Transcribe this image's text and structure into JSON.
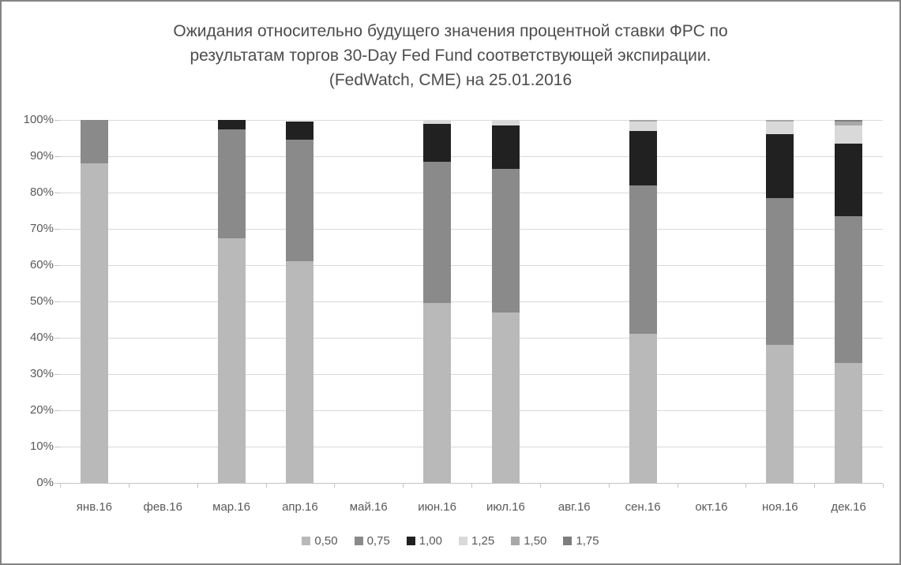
{
  "chart_data": {
    "type": "bar",
    "stacked": true,
    "percent_stacked": true,
    "title": "Ожидания относительно будущего значения процентной ставки ФРС по результатам торгов 30-Day Fed Fund соответствующей экспирации. (FedWatch, CME) на 25.01.2016",
    "title_lines": [
      "Ожидания относительно будущего значения процентной ставки ФРС по",
      "результатам торгов 30-Day Fed Fund соответствующей экспирации.",
      "(FedWatch, CME) на 25.01.2016"
    ],
    "categories": [
      "янв.16",
      "фев.16",
      "мар.16",
      "апр.16",
      "май.16",
      "июн.16",
      "июл.16",
      "авг.16",
      "сен.16",
      "окт.16",
      "ноя.16",
      "дек.16"
    ],
    "series": [
      {
        "name": "0,50",
        "color": "#b9b9b9",
        "values": [
          88,
          0,
          67.5,
          61,
          0,
          49.5,
          47,
          0,
          41,
          0,
          38,
          33
        ]
      },
      {
        "name": "0,75",
        "color": "#8a8a8a",
        "values": [
          12,
          0,
          30,
          33.5,
          0,
          39,
          39.5,
          0,
          41,
          0,
          40.5,
          40.5
        ]
      },
      {
        "name": "1,00",
        "color": "#212121",
        "values": [
          0,
          0,
          2.5,
          5,
          0,
          10.5,
          12,
          0,
          15,
          0,
          17.5,
          20
        ]
      },
      {
        "name": "1,25",
        "color": "#d9d9d9",
        "values": [
          0,
          0,
          0,
          0,
          0,
          1,
          1.5,
          0,
          2.5,
          0,
          3.5,
          5
        ]
      },
      {
        "name": "1,50",
        "color": "#a8a8a8",
        "values": [
          0,
          0,
          0,
          0,
          0,
          0,
          0,
          0,
          0.5,
          0,
          0.5,
          1
        ]
      },
      {
        "name": "1,75",
        "color": "#7d7d7d",
        "values": [
          0,
          0,
          0,
          0,
          0,
          0,
          0,
          0,
          0,
          0,
          0,
          0.5
        ]
      }
    ],
    "y_axis": {
      "min": 0,
      "max": 100,
      "tick_step": 10,
      "tick_labels": [
        "0%",
        "10%",
        "20%",
        "30%",
        "40%",
        "50%",
        "60%",
        "70%",
        "80%",
        "90%",
        "100%"
      ]
    },
    "grid": true,
    "legend_position": "bottom"
  },
  "colors": {
    "title_text": "#4d4d4d",
    "axis_text": "#595959",
    "gridline": "#d9d9d9",
    "axis_line": "#c3c3c3",
    "figure_border": "#848484",
    "background": "#ffffff"
  }
}
